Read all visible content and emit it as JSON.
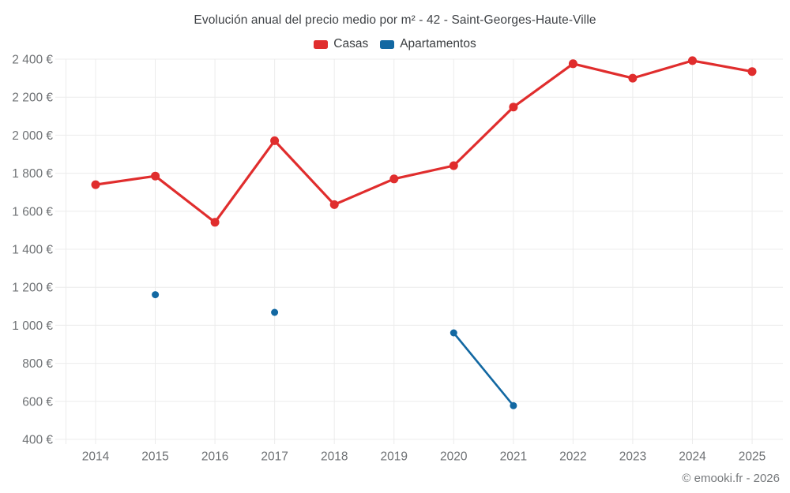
{
  "chart_data": {
    "type": "line",
    "title": "Evolución anual del precio medio por m² - 42 - Saint-Georges-Haute-Ville",
    "categories": [
      "2014",
      "2015",
      "2016",
      "2017",
      "2018",
      "2019",
      "2020",
      "2021",
      "2022",
      "2023",
      "2024",
      "2025"
    ],
    "series": [
      {
        "name": "Casas",
        "color": "#e02d2d",
        "values": [
          1740,
          1785,
          1542,
          1971,
          1635,
          1770,
          1840,
          2148,
          2376,
          2300,
          2392,
          2335
        ]
      },
      {
        "name": "Apartamentos",
        "color": "#1268a2",
        "values": [
          null,
          1161,
          null,
          1068,
          null,
          null,
          960,
          577,
          null,
          null,
          null,
          null
        ]
      }
    ],
    "xlabel": "",
    "ylabel": "",
    "ylim": [
      400,
      2400
    ],
    "y_ticks": [
      {
        "value": 400,
        "label": "400 €"
      },
      {
        "value": 600,
        "label": "600 €"
      },
      {
        "value": 800,
        "label": "800 €"
      },
      {
        "value": 1000,
        "label": "1 000 €"
      },
      {
        "value": 1200,
        "label": "1 200 €"
      },
      {
        "value": 1400,
        "label": "1 400 €"
      },
      {
        "value": 1600,
        "label": "1 600 €"
      },
      {
        "value": 1800,
        "label": "1 800 €"
      },
      {
        "value": 2000,
        "label": "2 000 €"
      },
      {
        "value": 2200,
        "label": "2 200 €"
      },
      {
        "value": 2400,
        "label": "2 400 €"
      }
    ],
    "grid": true,
    "legend_position": "top"
  },
  "colors": {
    "grid": "#ececec",
    "axis_text": "#6e7174"
  },
  "footer": {
    "copyright": "© emooki.fr - 2026"
  }
}
